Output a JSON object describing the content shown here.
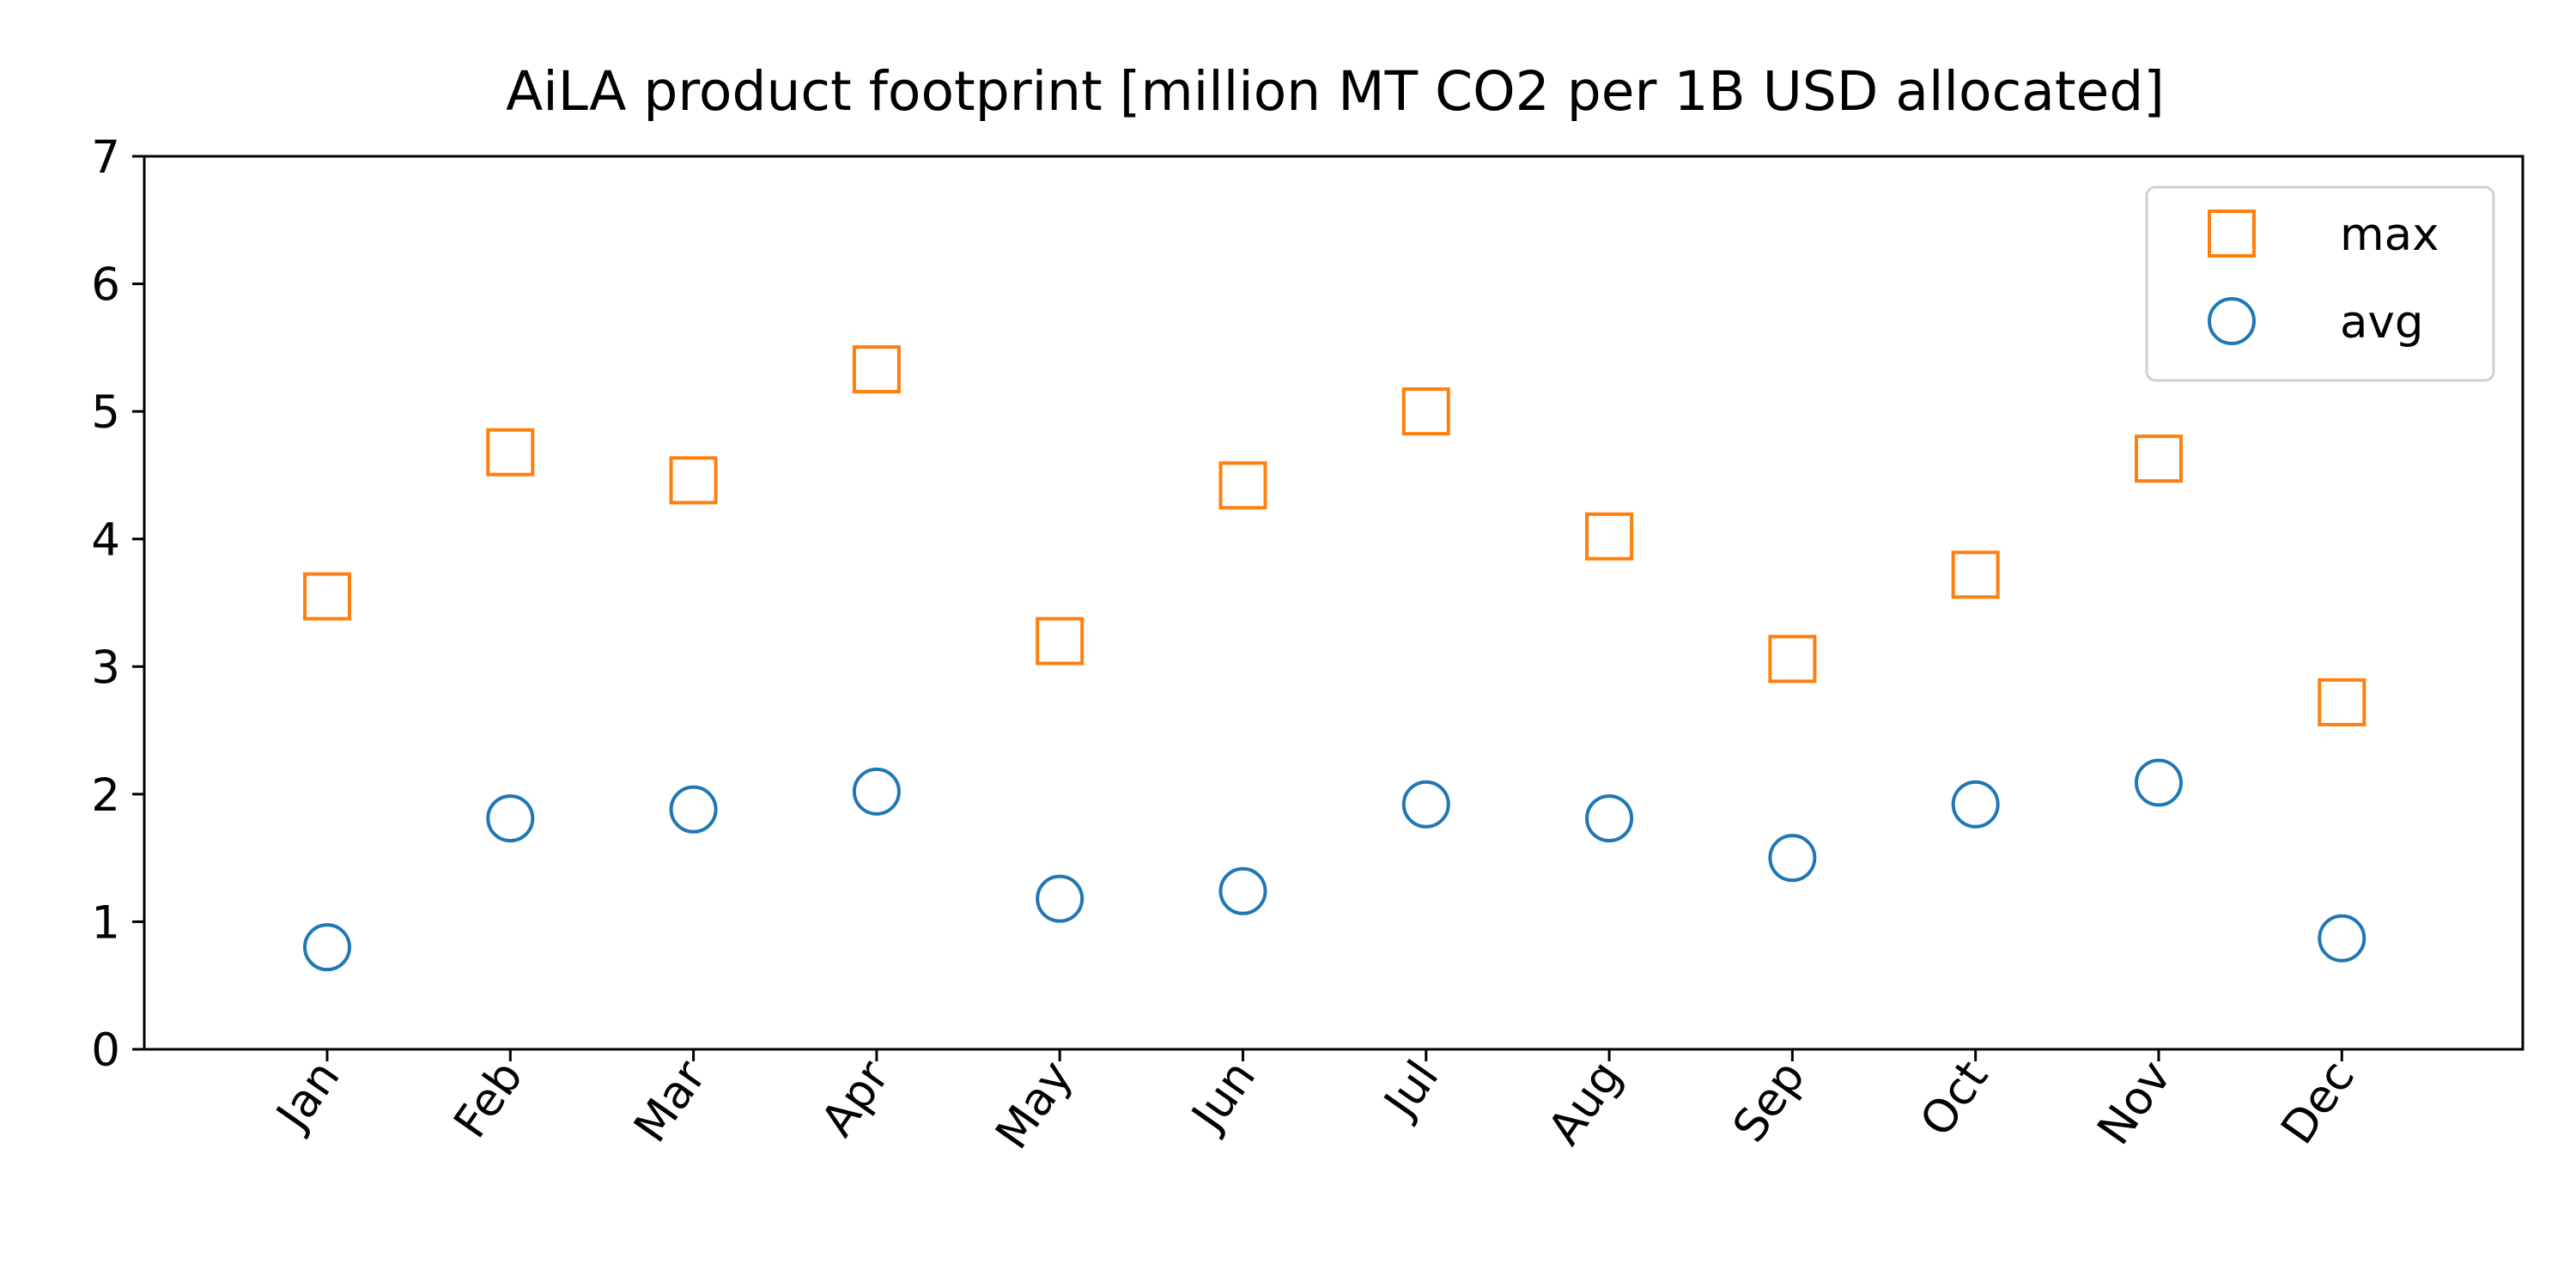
{
  "chart_data": {
    "type": "scatter",
    "title": "AiLA product footprint [million MT CO2 per 1B USD allocated]",
    "xlabel": "",
    "ylabel": "",
    "categories": [
      "Jan",
      "Feb",
      "Mar",
      "Apr",
      "May",
      "Jun",
      "Jul",
      "Aug",
      "Sep",
      "Oct",
      "Nov",
      "Dec"
    ],
    "ylim": [
      0,
      7
    ],
    "yticks": [
      "0",
      "1",
      "2",
      "3",
      "4",
      "5",
      "6",
      "7"
    ],
    "grid": false,
    "legend_position": "top-right",
    "x_tick_rotation_deg": -55,
    "series": [
      {
        "name": "max",
        "marker": "square",
        "color": "#ff7f0e",
        "values": [
          3.55,
          4.68,
          4.46,
          5.33,
          3.2,
          4.42,
          5.0,
          4.02,
          3.06,
          3.72,
          4.63,
          2.72
        ]
      },
      {
        "name": "avg",
        "marker": "circle",
        "color": "#1f77b4",
        "values": [
          0.8,
          1.81,
          1.88,
          2.02,
          1.18,
          1.24,
          1.92,
          1.81,
          1.5,
          1.92,
          2.09,
          0.87
        ]
      }
    ]
  }
}
